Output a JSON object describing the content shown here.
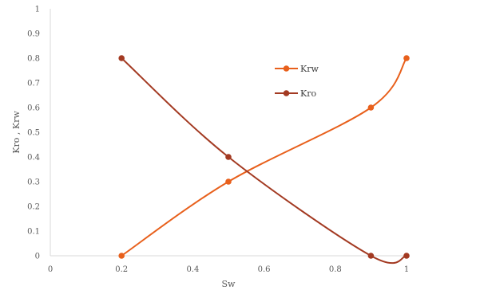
{
  "chart_data": {
    "type": "scatter",
    "title": "",
    "xlabel": "Sw",
    "ylabel": "Kro , Krw",
    "xlim": [
      0,
      1
    ],
    "ylim": [
      0,
      1
    ],
    "x_ticks": [
      "0",
      "0.2",
      "0.4",
      "0.6",
      "0.8",
      "1"
    ],
    "y_ticks": [
      "0",
      "0.1",
      "0.2",
      "0.3",
      "0.4",
      "0.5",
      "0.6",
      "0.7",
      "0.8",
      "0.9",
      "1"
    ],
    "grid": false,
    "smooth": true,
    "legend_position": "right",
    "series": [
      {
        "name": "Krw",
        "color": "#e8601c",
        "points": [
          [
            0.2,
            0.0
          ],
          [
            0.5,
            0.3
          ],
          [
            0.9,
            0.6
          ],
          [
            1.0,
            0.8
          ]
        ]
      },
      {
        "name": "Kro",
        "color": "#a33a22",
        "points": [
          [
            0.2,
            0.8
          ],
          [
            0.5,
            0.4
          ],
          [
            0.9,
            0.0
          ],
          [
            1.0,
            0.0
          ]
        ]
      }
    ]
  }
}
